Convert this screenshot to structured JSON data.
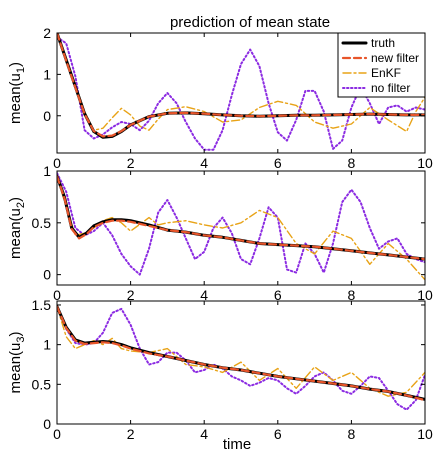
{
  "chart_data": {
    "type": "line",
    "title": "prediction of mean state",
    "xlabel": "time",
    "legend": {
      "placement": "top-right",
      "entries": [
        {
          "label": "truth",
          "color": "#000000",
          "style": "solid"
        },
        {
          "label": "new filter",
          "color": "#e8552a",
          "style": "dashed"
        },
        {
          "label": "EnKF",
          "color": "#e8a317",
          "style": "dashdot"
        },
        {
          "label": "no filter",
          "color": "#8b2be2",
          "style": "dotted"
        }
      ]
    },
    "subplots": [
      {
        "ylabel_main": "mean(u",
        "ylabel_sub": "1",
        "ylabel_close": ")",
        "xlim": [
          0,
          10
        ],
        "ylim": [
          -0.9,
          2.0
        ],
        "xticks": [
          0,
          2,
          4,
          6,
          8,
          10
        ],
        "yticks": [
          0,
          1,
          2
        ],
        "xtick_labels": [
          "0",
          "2",
          "4",
          "6",
          "8",
          "10"
        ],
        "ytick_labels": [
          "0",
          "1",
          "2"
        ],
        "series": [
          {
            "name": "truth",
            "x": [
              0,
              0.25,
              0.5,
              0.75,
              1,
              1.25,
              1.5,
              1.75,
              2,
              2.5,
              3,
              3.5,
              4,
              4.5,
              5,
              5.5,
              6,
              6.5,
              7,
              7.5,
              8,
              8.5,
              9,
              9.5,
              10
            ],
            "y": [
              2.0,
              1.35,
              0.7,
              0.05,
              -0.38,
              -0.52,
              -0.5,
              -0.38,
              -0.22,
              -0.02,
              0.06,
              0.07,
              0.05,
              0.02,
              0.0,
              -0.01,
              0.0,
              0.01,
              0.01,
              0.02,
              0.03,
              0.04,
              0.03,
              0.02,
              0.02
            ]
          },
          {
            "name": "new filter",
            "x": [
              0,
              0.25,
              0.5,
              0.75,
              1,
              1.25,
              1.5,
              1.75,
              2,
              2.5,
              3,
              3.5,
              4,
              4.5,
              5,
              5.5,
              6,
              6.5,
              7,
              7.5,
              8,
              8.5,
              9,
              9.5,
              10
            ],
            "y": [
              2.0,
              1.33,
              0.68,
              0.04,
              -0.37,
              -0.5,
              -0.48,
              -0.37,
              -0.22,
              -0.02,
              0.06,
              0.07,
              0.05,
              0.02,
              0.0,
              -0.01,
              0.0,
              0.01,
              0.01,
              0.02,
              0.03,
              0.04,
              0.03,
              0.02,
              0.02
            ]
          },
          {
            "name": "EnKF",
            "x": [
              0,
              0.25,
              0.5,
              0.75,
              1,
              1.25,
              1.5,
              1.75,
              2,
              2.25,
              2.5,
              2.75,
              3,
              3.5,
              4,
              4.5,
              5,
              5.5,
              6,
              6.5,
              7,
              7.5,
              8,
              8.5,
              9,
              9.5,
              9.75,
              10
            ],
            "y": [
              2.0,
              1.3,
              0.75,
              0.1,
              -0.35,
              -0.3,
              -0.05,
              0.18,
              0.02,
              -0.25,
              -0.35,
              -0.08,
              0.15,
              0.22,
              0.1,
              -0.15,
              -0.1,
              0.2,
              0.35,
              0.25,
              -0.15,
              -0.3,
              -0.2,
              0.2,
              -0.1,
              -0.38,
              0.1,
              0.45
            ]
          },
          {
            "name": "no filter",
            "x": [
              0,
              0.25,
              0.5,
              0.75,
              1,
              1.25,
              1.5,
              1.75,
              2,
              2.25,
              2.5,
              2.75,
              3,
              3.25,
              3.5,
              3.75,
              4,
              4.25,
              4.5,
              4.75,
              5,
              5.25,
              5.5,
              5.75,
              6,
              6.25,
              6.5,
              6.75,
              7,
              7.25,
              7.5,
              7.75,
              8,
              8.25,
              8.5,
              8.75,
              9,
              9.25,
              9.5,
              9.75,
              10
            ],
            "y": [
              1.9,
              1.75,
              0.95,
              -0.35,
              -0.55,
              -0.45,
              -0.28,
              -0.15,
              -0.2,
              -0.35,
              -0.12,
              0.3,
              0.55,
              0.3,
              -0.15,
              -0.55,
              -0.82,
              -0.82,
              -0.35,
              0.5,
              1.25,
              1.6,
              1.2,
              0.3,
              -0.4,
              -0.6,
              -0.1,
              0.6,
              0.6,
              0.1,
              -0.8,
              -0.6,
              0.2,
              0.7,
              0.3,
              -0.2,
              0.2,
              0.25,
              0.1,
              0.2,
              0.15
            ]
          }
        ]
      },
      {
        "ylabel_main": "mean(u",
        "ylabel_sub": "2",
        "ylabel_close": ")",
        "xlim": [
          0,
          10
        ],
        "ylim": [
          -0.1,
          1.0
        ],
        "xticks": [
          0,
          2,
          4,
          6,
          8,
          10
        ],
        "yticks": [
          0,
          0.5,
          1
        ],
        "xtick_labels": [
          "0",
          "2",
          "4",
          "6",
          "8",
          "10"
        ],
        "ytick_labels": [
          "0",
          "0.5",
          "1"
        ],
        "series": [
          {
            "name": "truth",
            "x": [
              0,
              0.2,
              0.4,
              0.6,
              0.8,
              1,
              1.25,
              1.5,
              1.75,
              2,
              2.5,
              3,
              3.5,
              4,
              4.5,
              5,
              5.5,
              6,
              6.5,
              7,
              7.5,
              8,
              8.5,
              9,
              9.5,
              10
            ],
            "y": [
              0.95,
              0.75,
              0.45,
              0.36,
              0.4,
              0.47,
              0.51,
              0.53,
              0.53,
              0.52,
              0.48,
              0.43,
              0.41,
              0.38,
              0.36,
              0.33,
              0.3,
              0.29,
              0.28,
              0.27,
              0.25,
              0.23,
              0.21,
              0.19,
              0.17,
              0.15
            ]
          },
          {
            "name": "new filter",
            "x": [
              0,
              0.2,
              0.4,
              0.6,
              0.8,
              1,
              1.25,
              1.5,
              1.75,
              2,
              2.5,
              3,
              3.5,
              4,
              4.5,
              5,
              5.5,
              6,
              6.5,
              7,
              7.5,
              8,
              8.5,
              9,
              9.5,
              10
            ],
            "y": [
              0.95,
              0.74,
              0.44,
              0.35,
              0.39,
              0.46,
              0.5,
              0.52,
              0.52,
              0.51,
              0.47,
              0.43,
              0.41,
              0.38,
              0.36,
              0.33,
              0.3,
              0.29,
              0.28,
              0.27,
              0.25,
              0.23,
              0.21,
              0.19,
              0.17,
              0.15
            ]
          },
          {
            "name": "EnKF",
            "x": [
              0,
              0.25,
              0.5,
              0.75,
              1,
              1.25,
              1.5,
              1.75,
              2,
              2.5,
              2.75,
              3,
              3.5,
              4,
              4.5,
              5,
              5.5,
              6,
              6.5,
              7,
              7.5,
              8,
              8.5,
              9,
              9.5,
              10
            ],
            "y": [
              0.95,
              0.65,
              0.38,
              0.4,
              0.45,
              0.52,
              0.55,
              0.5,
              0.42,
              0.55,
              0.48,
              0.5,
              0.52,
              0.48,
              0.45,
              0.5,
              0.62,
              0.55,
              0.3,
              0.2,
              0.42,
              0.35,
              0.1,
              0.3,
              0.15,
              -0.05
            ]
          },
          {
            "name": "no filter",
            "x": [
              0,
              0.25,
              0.5,
              0.75,
              1,
              1.25,
              1.5,
              1.75,
              2,
              2.25,
              2.5,
              2.75,
              3,
              3.25,
              3.5,
              3.75,
              4,
              4.25,
              4.5,
              4.75,
              5,
              5.25,
              5.5,
              5.75,
              6,
              6.25,
              6.5,
              6.75,
              7,
              7.25,
              7.5,
              7.75,
              8,
              8.25,
              8.5,
              8.75,
              9,
              9.25,
              9.5,
              9.75,
              10
            ],
            "y": [
              0.98,
              0.8,
              0.45,
              0.38,
              0.42,
              0.5,
              0.38,
              0.2,
              0.08,
              0.0,
              0.25,
              0.6,
              0.72,
              0.55,
              0.35,
              0.15,
              0.22,
              0.45,
              0.55,
              0.4,
              0.15,
              0.1,
              0.35,
              0.65,
              0.55,
              0.05,
              0.02,
              0.3,
              0.2,
              0.02,
              0.3,
              0.7,
              0.82,
              0.7,
              0.45,
              0.25,
              0.32,
              0.35,
              0.2,
              0.15,
              0.12
            ]
          }
        ]
      },
      {
        "ylabel_main": "mean(u",
        "ylabel_sub": "3",
        "ylabel_close": ")",
        "xlim": [
          0,
          10
        ],
        "ylim": [
          0,
          1.55
        ],
        "xticks": [
          0,
          2,
          4,
          6,
          8,
          10
        ],
        "yticks": [
          0,
          0.5,
          1,
          1.5
        ],
        "xtick_labels": [
          "0",
          "2",
          "4",
          "6",
          "8",
          "10"
        ],
        "ytick_labels": [
          "0",
          "0.5",
          "1",
          "1.5"
        ],
        "series": [
          {
            "name": "truth",
            "x": [
              0,
              0.25,
              0.5,
              0.75,
              1,
              1.25,
              1.5,
              1.75,
              2,
              2.5,
              3,
              3.5,
              4,
              4.5,
              5,
              5.5,
              6,
              6.5,
              7,
              7.5,
              8,
              8.5,
              9,
              9.5,
              10
            ],
            "y": [
              1.48,
              1.22,
              1.06,
              1.02,
              1.03,
              1.04,
              1.03,
              1.0,
              0.96,
              0.9,
              0.85,
              0.8,
              0.75,
              0.71,
              0.68,
              0.64,
              0.6,
              0.57,
              0.54,
              0.51,
              0.48,
              0.44,
              0.41,
              0.36,
              0.31
            ]
          },
          {
            "name": "new filter",
            "x": [
              0,
              0.25,
              0.5,
              0.75,
              1,
              1.25,
              1.5,
              1.75,
              2,
              2.5,
              3,
              3.5,
              4,
              4.5,
              5,
              5.5,
              6,
              6.5,
              7,
              7.5,
              8,
              8.5,
              9,
              9.5,
              10
            ],
            "y": [
              1.48,
              1.21,
              1.05,
              1.01,
              1.02,
              1.03,
              1.02,
              0.99,
              0.95,
              0.89,
              0.85,
              0.8,
              0.75,
              0.71,
              0.68,
              0.64,
              0.6,
              0.57,
              0.54,
              0.51,
              0.48,
              0.44,
              0.41,
              0.36,
              0.3
            ]
          },
          {
            "name": "EnKF",
            "x": [
              0,
              0.25,
              0.5,
              0.75,
              1,
              1.25,
              1.5,
              1.75,
              2,
              2.5,
              3,
              3.5,
              4,
              4.5,
              5,
              5.5,
              6,
              6.5,
              7,
              7.5,
              8,
              8.5,
              9,
              9.5,
              10
            ],
            "y": [
              1.48,
              1.1,
              0.95,
              1.0,
              1.05,
              1.0,
              1.08,
              0.95,
              0.92,
              0.9,
              0.95,
              0.75,
              0.72,
              0.65,
              0.78,
              0.55,
              0.7,
              0.45,
              0.72,
              0.55,
              0.65,
              0.45,
              0.35,
              0.4,
              0.65
            ]
          },
          {
            "name": "no filter",
            "x": [
              0,
              0.25,
              0.5,
              0.75,
              1,
              1.25,
              1.5,
              1.75,
              2,
              2.25,
              2.5,
              2.75,
              3,
              3.25,
              3.5,
              3.75,
              4,
              4.25,
              4.5,
              4.75,
              5,
              5.25,
              5.5,
              5.75,
              6,
              6.25,
              6.5,
              6.75,
              7,
              7.25,
              7.5,
              7.75,
              8,
              8.25,
              8.5,
              8.75,
              9,
              9.25,
              9.5,
              9.75,
              10
            ],
            "y": [
              1.48,
              1.2,
              1.02,
              1.0,
              1.02,
              1.15,
              1.4,
              1.45,
              1.25,
              0.95,
              0.75,
              0.78,
              0.9,
              0.9,
              0.8,
              0.65,
              0.68,
              0.75,
              0.7,
              0.6,
              0.55,
              0.48,
              0.52,
              0.58,
              0.55,
              0.45,
              0.38,
              0.48,
              0.6,
              0.65,
              0.55,
              0.42,
              0.38,
              0.48,
              0.6,
              0.58,
              0.42,
              0.25,
              0.18,
              0.3,
              0.62
            ]
          }
        ]
      }
    ]
  }
}
